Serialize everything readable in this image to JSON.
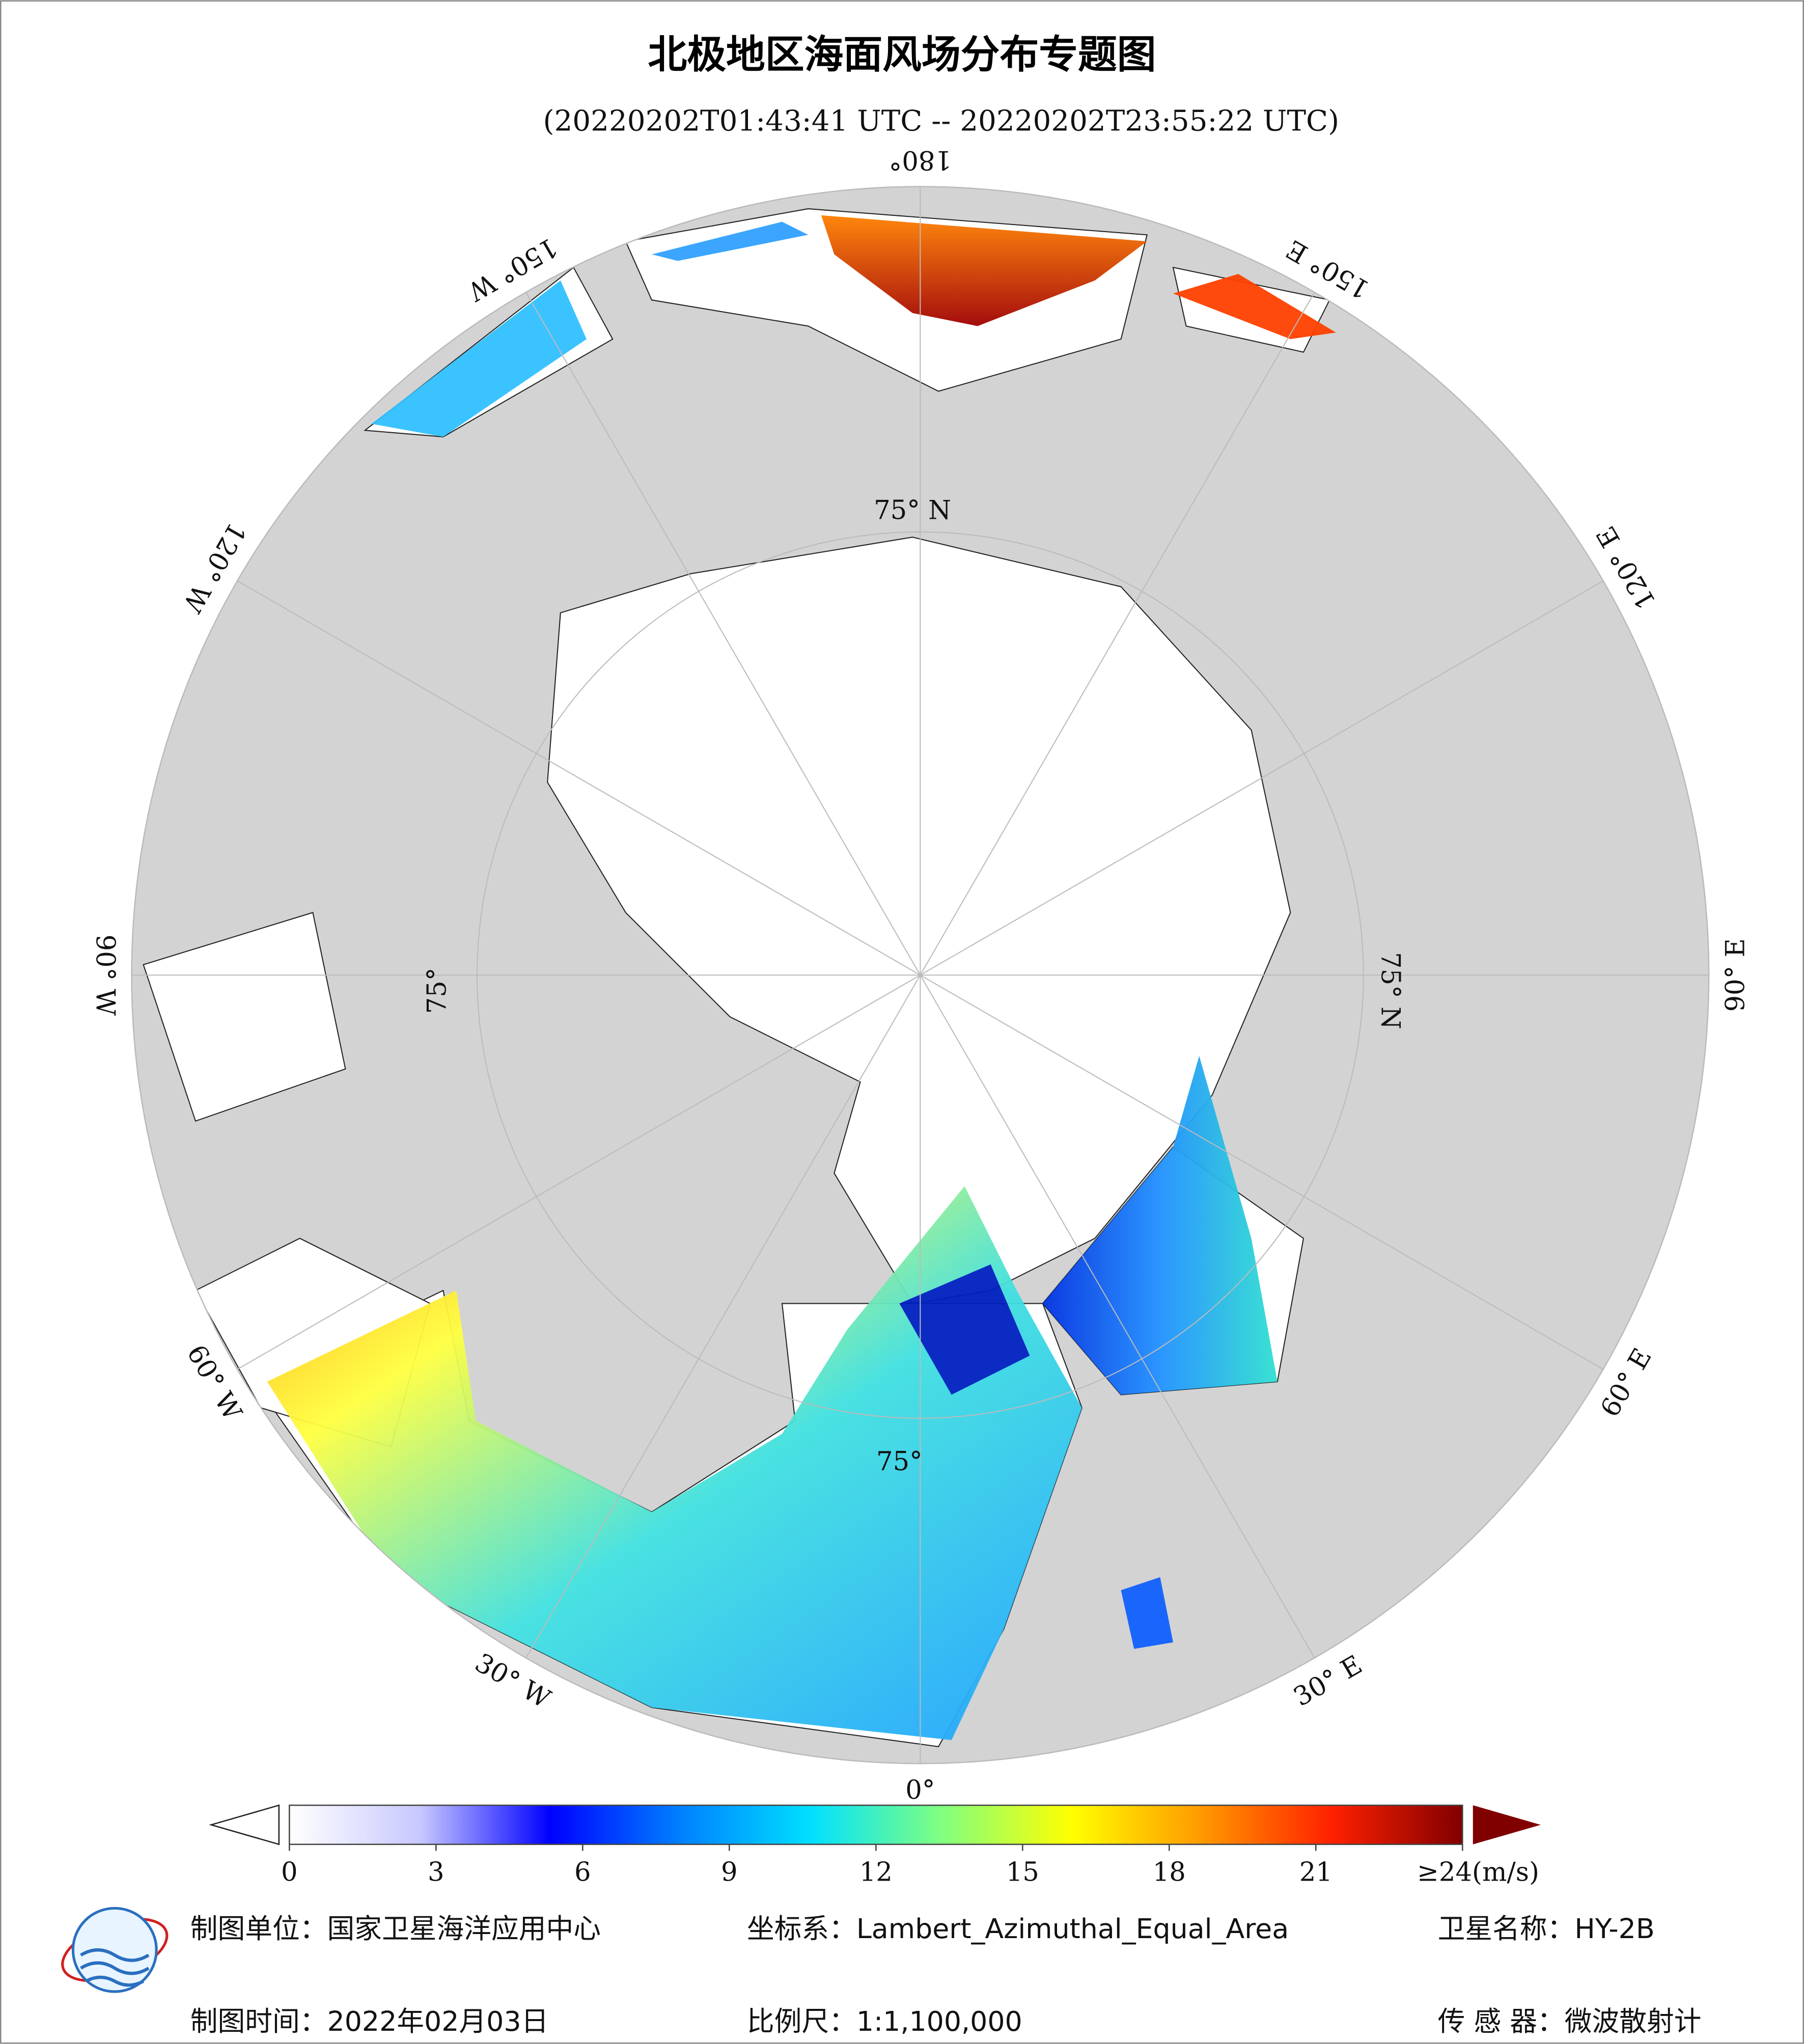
{
  "header": {
    "title": "北极地区海面风场分布专题图",
    "subtitle": "(20220202T01:43:41 UTC -- 20220202T23:55:22 UTC)"
  },
  "map": {
    "lon_labels": [
      "0°",
      "30° E",
      "60° E",
      "90° E",
      "120° E",
      "150° E",
      "180°",
      "150° W",
      "120° W",
      "90° W",
      "60° W",
      "30° W"
    ],
    "lat_labels": [
      "75° N",
      "75° N",
      "75°",
      "75°"
    ]
  },
  "colorbar": {
    "colors": [
      "#ffffff",
      "#c8c8ff",
      "#0000ff",
      "#0080ff",
      "#00e0ff",
      "#80ff80",
      "#ffff00",
      "#ff9900",
      "#ff2000",
      "#800000"
    ],
    "lim": [
      0,
      24
    ],
    "ticks": [
      0,
      3,
      6,
      9,
      12,
      15,
      18,
      21,
      {
        "value": 24,
        "label": "≥24(m/s)"
      }
    ]
  },
  "footer": {
    "unit": "制图单位：国家卫星海洋应用中心",
    "crs": "坐标系：Lambert_Azimuthal_Equal_Area",
    "satellite": "卫星名称：HY-2B",
    "date": "制图时间：2022年02月03日",
    "scale": "比例尺：1:1,100,000",
    "sensor": "传 感 器：微波散射计"
  }
}
